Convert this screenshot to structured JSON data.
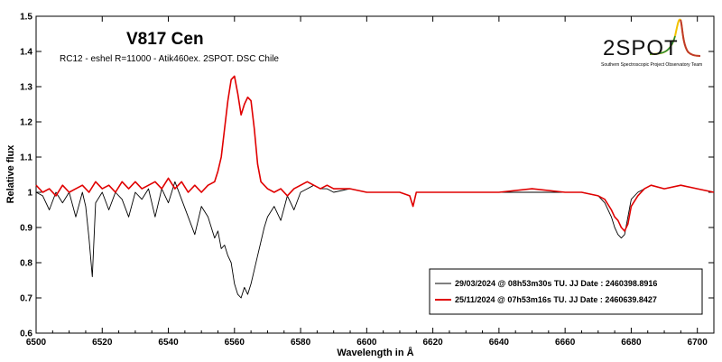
{
  "chart_data": {
    "type": "line",
    "title": "V817 Cen",
    "subtitle": "RC12 - eshel R=11000 - Atik460ex. 2SPOT. DSC Chile",
    "xlabel": "Wavelength in Å",
    "ylabel": "Relative flux",
    "xlim": [
      6500,
      6705
    ],
    "ylim": [
      0.6,
      1.5
    ],
    "xticks": [
      "6500",
      "6520",
      "6540",
      "6560",
      "6580",
      "6600",
      "6620",
      "6640",
      "6660",
      "6680",
      "6700"
    ],
    "yticks": [
      "0.6",
      "0.7",
      "0.8",
      "0.9",
      "1",
      "1.1",
      "1.2",
      "1.3",
      "1.4",
      "1.5"
    ],
    "grid": false,
    "legend_position": "bottom-right",
    "series": [
      {
        "name": "29/03/2024 @ 08h53m30s TU.  JJ Date : 2460398.8916",
        "color": "#000000",
        "x": [
          6500,
          6502,
          6504,
          6506,
          6508,
          6510,
          6512,
          6514,
          6515,
          6516,
          6517,
          6518,
          6520,
          6522,
          6524,
          6526,
          6528,
          6530,
          6532,
          6534,
          6536,
          6538,
          6540,
          6542,
          6544,
          6546,
          6548,
          6550,
          6552,
          6553,
          6554,
          6555,
          6556,
          6557,
          6558,
          6559,
          6560,
          6561,
          6562,
          6563,
          6564,
          6565,
          6566,
          6567,
          6568,
          6569,
          6570,
          6572,
          6574,
          6576,
          6578,
          6580,
          6582,
          6584,
          6586,
          6588,
          6590,
          6595,
          6600,
          6605,
          6610,
          6613,
          6614,
          6615,
          6620,
          6630,
          6640,
          6650,
          6660,
          6665,
          6670,
          6672,
          6674,
          6675,
          6676,
          6677,
          6678,
          6679,
          6680,
          6682,
          6684,
          6686,
          6690,
          6695,
          6700,
          6705
        ],
        "y": [
          1.0,
          0.99,
          0.95,
          1.0,
          0.97,
          1.0,
          0.93,
          1.0,
          0.96,
          0.87,
          0.76,
          0.97,
          1.0,
          0.95,
          1.0,
          0.98,
          0.93,
          1.0,
          0.98,
          1.01,
          0.93,
          1.01,
          0.97,
          1.03,
          0.98,
          0.93,
          0.88,
          0.96,
          0.93,
          0.9,
          0.87,
          0.89,
          0.84,
          0.85,
          0.82,
          0.8,
          0.74,
          0.71,
          0.7,
          0.73,
          0.71,
          0.74,
          0.78,
          0.82,
          0.86,
          0.9,
          0.93,
          0.96,
          0.92,
          0.99,
          0.95,
          1.0,
          1.01,
          1.02,
          1.01,
          1.01,
          1.0,
          1.01,
          1.0,
          1.0,
          1.0,
          0.99,
          0.96,
          1.0,
          1.0,
          1.0,
          1.0,
          1.0,
          1.0,
          1.0,
          0.99,
          0.97,
          0.93,
          0.9,
          0.88,
          0.87,
          0.88,
          0.93,
          0.98,
          1.0,
          1.01,
          1.02,
          1.01,
          1.02,
          1.01,
          1.0
        ]
      },
      {
        "name": "25/11/2024 @ 07h53m16s TU.  JJ Date : 2460639.8427",
        "color": "#e00000",
        "x": [
          6500,
          6502,
          6504,
          6506,
          6508,
          6510,
          6512,
          6514,
          6516,
          6518,
          6520,
          6522,
          6524,
          6526,
          6528,
          6530,
          6532,
          6534,
          6536,
          6538,
          6540,
          6542,
          6544,
          6546,
          6548,
          6550,
          6552,
          6554,
          6555,
          6556,
          6557,
          6558,
          6559,
          6560,
          6561,
          6562,
          6563,
          6564,
          6565,
          6566,
          6567,
          6568,
          6570,
          6572,
          6574,
          6576,
          6578,
          6580,
          6582,
          6584,
          6586,
          6588,
          6590,
          6595,
          6600,
          6605,
          6610,
          6613,
          6614,
          6615,
          6620,
          6630,
          6640,
          6650,
          6660,
          6665,
          6670,
          6672,
          6674,
          6675,
          6676,
          6677,
          6678,
          6679,
          6680,
          6682,
          6684,
          6686,
          6690,
          6695,
          6700,
          6705
        ],
        "y": [
          1.02,
          1.0,
          1.01,
          0.99,
          1.02,
          1.0,
          1.01,
          1.02,
          1.0,
          1.03,
          1.01,
          1.02,
          1.0,
          1.03,
          1.01,
          1.03,
          1.01,
          1.02,
          1.03,
          1.01,
          1.04,
          1.01,
          1.03,
          1.0,
          1.02,
          1.0,
          1.02,
          1.03,
          1.06,
          1.1,
          1.18,
          1.26,
          1.32,
          1.33,
          1.28,
          1.22,
          1.25,
          1.27,
          1.26,
          1.18,
          1.08,
          1.03,
          1.01,
          1.0,
          1.01,
          0.99,
          1.01,
          1.02,
          1.03,
          1.02,
          1.01,
          1.02,
          1.01,
          1.01,
          1.0,
          1.0,
          1.0,
          0.99,
          0.96,
          1.0,
          1.0,
          1.0,
          1.0,
          1.01,
          1.0,
          1.0,
          0.99,
          0.98,
          0.95,
          0.93,
          0.92,
          0.9,
          0.89,
          0.91,
          0.96,
          0.99,
          1.01,
          1.02,
          1.01,
          1.02,
          1.01,
          1.0
        ]
      }
    ]
  },
  "logo": {
    "text": "2SPOT",
    "tagline": "Southern Spectroscopic Project Observatory Team",
    "accent_colors": [
      "#1f8a3b",
      "#f2c200",
      "#c0392b"
    ]
  }
}
